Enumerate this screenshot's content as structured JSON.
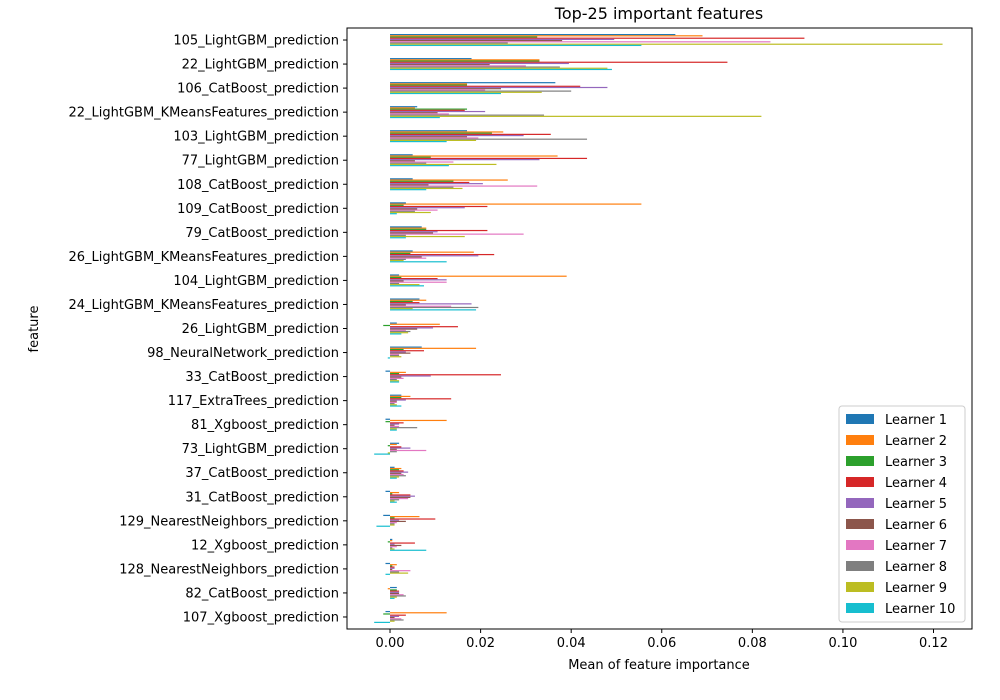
{
  "chart_data": {
    "type": "bar",
    "orientation": "horizontal",
    "title": "Top-25 important features",
    "xlabel": "Mean of feature importance",
    "ylabel": "feature",
    "xlim": [
      -0.0095,
      0.1285
    ],
    "xticks": [
      0.0,
      0.02,
      0.04,
      0.06,
      0.08,
      0.1,
      0.12
    ],
    "xtick_labels": [
      "0.00",
      "0.02",
      "0.04",
      "0.06",
      "0.08",
      "0.10",
      "0.12"
    ],
    "grid": false,
    "legend_position": "lower-right",
    "categories": [
      "105_LightGBM_prediction",
      "22_LightGBM_prediction",
      "106_CatBoost_prediction",
      "22_LightGBM_KMeansFeatures_prediction",
      "103_LightGBM_prediction",
      "77_LightGBM_prediction",
      "108_CatBoost_prediction",
      "109_CatBoost_prediction",
      "79_CatBoost_prediction",
      "26_LightGBM_KMeansFeatures_prediction",
      "104_LightGBM_prediction",
      "24_LightGBM_KMeansFeatures_prediction",
      "26_LightGBM_prediction",
      "98_NeuralNetwork_prediction",
      "33_CatBoost_prediction",
      "117_ExtraTrees_prediction",
      "81_Xgboost_prediction",
      "73_LightGBM_prediction",
      "37_CatBoost_prediction",
      "31_CatBoost_prediction",
      "129_NearestNeighbors_prediction",
      "12_Xgboost_prediction",
      "128_NearestNeighbors_prediction",
      "82_CatBoost_prediction",
      "107_Xgboost_prediction"
    ],
    "series": [
      {
        "name": "Learner 1",
        "color": "#1f77b4",
        "values": [
          0.063,
          0.018,
          0.0365,
          0.006,
          0.017,
          0.005,
          0.005,
          0.0035,
          0.007,
          0.005,
          0.002,
          0.0065,
          0.0015,
          0.007,
          -0.001,
          0.0025,
          -0.001,
          0.002,
          0.001,
          -0.001,
          -0.0015,
          0.0005,
          -0.001,
          0.0015,
          -0.001
        ]
      },
      {
        "name": "Learner 2",
        "color": "#ff7f0e",
        "values": [
          0.069,
          0.033,
          0.017,
          0.0055,
          0.025,
          0.037,
          0.026,
          0.0555,
          0.008,
          0.0185,
          0.039,
          0.008,
          0.011,
          0.019,
          0.0035,
          0.0045,
          0.0125,
          0.0015,
          0.0025,
          0.002,
          0.0065,
          0.0005,
          0.0015,
          -0.0005,
          0.0125
        ]
      },
      {
        "name": "Learner 3",
        "color": "#2ca02c",
        "values": [
          0.0325,
          0.033,
          0.017,
          0.017,
          0.0225,
          0.009,
          0.014,
          0.003,
          0.008,
          0.0045,
          0.0025,
          0.005,
          -0.0015,
          0.003,
          0.002,
          0.0025,
          -0.001,
          -0.0005,
          0.002,
          0.0005,
          0.001,
          -0.0005,
          0.0005,
          0.0015,
          -0.0015
        ]
      },
      {
        "name": "Learner 4",
        "color": "#d62728",
        "values": [
          0.0915,
          0.0745,
          0.042,
          0.0165,
          0.0355,
          0.0435,
          0.0175,
          0.0215,
          0.0215,
          0.023,
          0.0105,
          0.0065,
          0.015,
          0.0075,
          0.0245,
          0.0135,
          0.003,
          0.0025,
          0.003,
          0.0045,
          0.01,
          0.0055,
          0.001,
          0.002,
          0.0035
        ]
      },
      {
        "name": "Learner 5",
        "color": "#9467bd",
        "values": [
          0.0495,
          0.0395,
          0.048,
          0.021,
          0.0295,
          0.033,
          0.0205,
          0.0165,
          0.0105,
          0.0195,
          0.0125,
          0.018,
          0.0095,
          0.0035,
          0.009,
          0.0035,
          0.002,
          0.0045,
          0.004,
          0.0055,
          0.002,
          0.001,
          0.001,
          0.002,
          0.002
        ]
      },
      {
        "name": "Learner 6",
        "color": "#8c564b",
        "values": [
          0.038,
          0.022,
          0.0245,
          0.0105,
          0.017,
          0.0055,
          0.0085,
          0.006,
          0.0095,
          0.007,
          0.003,
          0.0035,
          0.006,
          0.0045,
          0.0025,
          0.0015,
          0.001,
          0.0015,
          0.0025,
          0.0045,
          0.0035,
          0.0025,
          0.0005,
          0.002,
          0.001
        ]
      },
      {
        "name": "Learner 7",
        "color": "#e377c2",
        "values": [
          0.084,
          0.03,
          0.021,
          0.013,
          0.0195,
          0.014,
          0.0325,
          0.0105,
          0.0295,
          0.008,
          0.0125,
          0.0135,
          0.0035,
          0.002,
          0.003,
          0.0015,
          0.002,
          0.008,
          0.003,
          0.004,
          0.0015,
          0.0015,
          0.0045,
          0.003,
          0.0025
        ]
      },
      {
        "name": "Learner 8",
        "color": "#7f7f7f",
        "values": [
          0.026,
          0.0375,
          0.04,
          0.034,
          0.0435,
          0.008,
          0.014,
          0.0055,
          0.0035,
          0.0035,
          0.002,
          0.0195,
          0.0045,
          0.002,
          0.0015,
          0.001,
          0.006,
          0.0015,
          0.0035,
          0.002,
          0.001,
          0.0005,
          0.002,
          0.0035,
          0.003
        ]
      },
      {
        "name": "Learner 9",
        "color": "#bcbd22",
        "values": [
          0.122,
          0.048,
          0.0335,
          0.082,
          0.019,
          0.0235,
          0.016,
          0.009,
          0.0165,
          0.003,
          0.0065,
          0.005,
          0.004,
          0.0025,
          0.002,
          0.0015,
          0.0015,
          -0.0005,
          0.002,
          0.001,
          0.001,
          0.001,
          0.004,
          0.0015,
          0.001
        ]
      },
      {
        "name": "Learner 10",
        "color": "#17becf",
        "values": [
          0.0555,
          0.049,
          0.0245,
          0.011,
          0.0125,
          0.013,
          0.008,
          0.0015,
          0.0035,
          0.0125,
          0.0075,
          0.019,
          0.0025,
          -0.0005,
          0.002,
          0.0025,
          0.0015,
          -0.0035,
          0.0015,
          0.0015,
          -0.003,
          0.008,
          -0.001,
          0.001,
          -0.0035
        ]
      }
    ]
  }
}
